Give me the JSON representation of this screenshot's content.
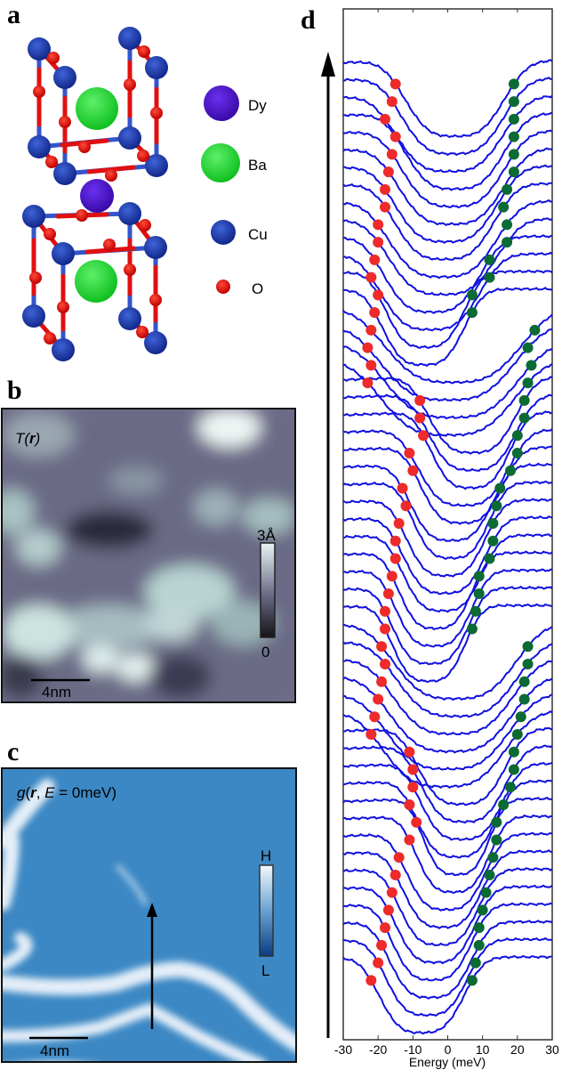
{
  "panels": {
    "a": {
      "label": "a",
      "legend": [
        {
          "name": "Dy",
          "color": "#4a10d0"
        },
        {
          "name": "Ba",
          "color": "#22dd33"
        },
        {
          "name": "Cu",
          "color": "#1a3aa8"
        },
        {
          "name": "O",
          "color": "#e01010"
        }
      ]
    },
    "b": {
      "label": "b",
      "title": "T(r)",
      "colorbar_max": "3Å",
      "colorbar_min": "0",
      "scalebar": "4nm"
    },
    "c": {
      "label": "c",
      "title": "g(r, E = 0meV)",
      "colorbar_max": "H",
      "colorbar_min": "L",
      "scalebar": "4nm"
    },
    "d": {
      "label": "d"
    }
  },
  "chart_data": {
    "type": "line",
    "title": "",
    "xlabel": "Energy (meV)",
    "ylabel": "",
    "xlim": [
      -30,
      30
    ],
    "xticks": [
      -30,
      -20,
      -10,
      0,
      10,
      20,
      30
    ],
    "xtick_labels": [
      "-30",
      "-20",
      "-10",
      "0",
      "10",
      "20",
      "30"
    ],
    "grid": false,
    "legend": "none",
    "series_description": "Stacked vertically offset dI/dV spectra along arrow in panel c; red dots mark negative-energy gap edge, green dots mark positive-energy gap edge",
    "gap_edges": {
      "negative_meV": [
        -15,
        -16,
        -18,
        -15,
        -16,
        -17,
        -18,
        -18,
        -20,
        -20,
        -21,
        -22,
        -20,
        -21,
        -22,
        -23,
        -22,
        -23,
        -8,
        -8,
        -7,
        -11,
        -10,
        -13,
        -12,
        -14,
        -15,
        -15,
        -16,
        -17,
        -18,
        -18,
        -19,
        -18,
        -19,
        -20,
        -21,
        -22,
        -11,
        -10,
        -10,
        -11,
        -9,
        -11,
        -14,
        -15,
        -16,
        -17,
        -18,
        -19,
        -20,
        -22
      ],
      "positive_meV": [
        19,
        19,
        19,
        19,
        19,
        19,
        17,
        16,
        17,
        17,
        12,
        12,
        7,
        7,
        25,
        23,
        24,
        23,
        22,
        22,
        20,
        20,
        18,
        15,
        14,
        13,
        13,
        12,
        9,
        9,
        8,
        7,
        23,
        23,
        22,
        22,
        21,
        20,
        19,
        19,
        18,
        16,
        14,
        14,
        13,
        12,
        11,
        10,
        9,
        9,
        8,
        7
      ]
    }
  },
  "arrow": {
    "direction": "up"
  }
}
